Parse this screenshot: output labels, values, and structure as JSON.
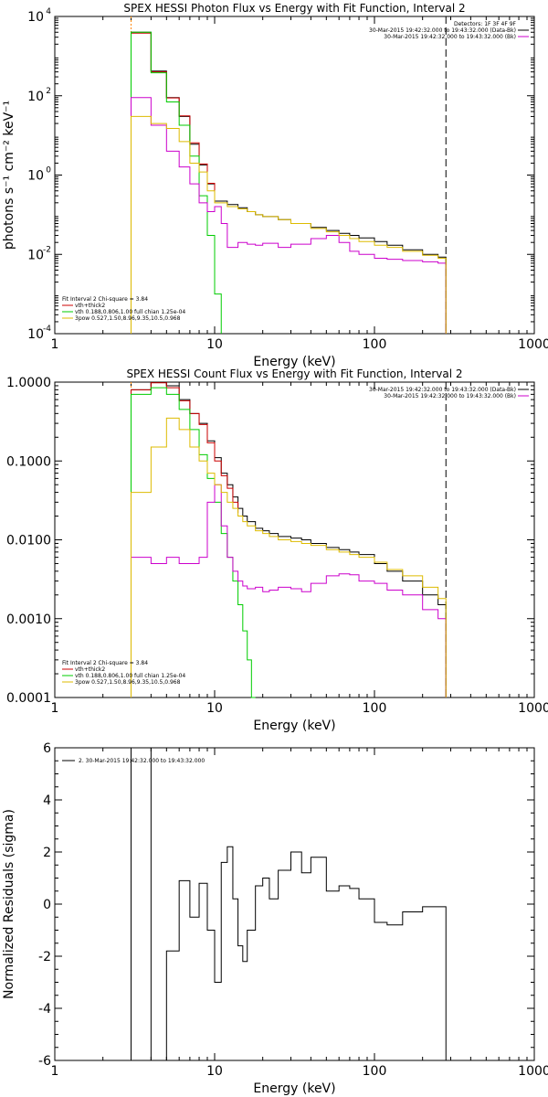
{
  "chart_data": [
    {
      "type": "line",
      "title": "SPEX HESSI Photon Flux vs Energy with Fit Function, Interval 2",
      "xlabel": "Energy (keV)",
      "ylabel": "photons s⁻¹ cm⁻² keV⁻¹",
      "xscale": "log",
      "yscale": "log",
      "xlim": [
        1,
        1000
      ],
      "ylim": [
        0.0001,
        10000
      ],
      "xticks": [
        1,
        10,
        100,
        1000
      ],
      "xtick_labels": [
        "1",
        "10",
        "100",
        "1000"
      ],
      "yticks": [
        0.0001,
        0.01,
        1,
        100,
        10000
      ],
      "ytick_labels": [
        [
          "10",
          "-4"
        ],
        [
          "10",
          "-2"
        ],
        [
          "10",
          "0"
        ],
        [
          "10",
          "2"
        ],
        [
          "10",
          "4"
        ]
      ],
      "legend_top": [
        "Detectors: 1F 3F 4F 9F",
        "30-Mar-2015 19:42:32.000 to 19:43:32.000 (Data-Bk)",
        "30-Mar-2015 19:42:32.000 to 19:43:32.000 (Bk)"
      ],
      "legend_bottom": [
        "Fit Interval 2   Chi-square = 3.84",
        "vth+thick2",
        "vth 0.188,0.806,1.00  full chian 1.25e-04",
        "3pow 0.527,1.50,8.96,9.35,10.5,0.968"
      ],
      "vlines": [
        3,
        280
      ],
      "series": [
        {
          "color": "#000000",
          "x": [
            3,
            4,
            5,
            6,
            7,
            8,
            9,
            10,
            12,
            14,
            16,
            18,
            20,
            25,
            30,
            40,
            50,
            60,
            70,
            80,
            100,
            120,
            150,
            200,
            250,
            280
          ],
          "y": [
            4000,
            420,
            90,
            30,
            6,
            1.8,
            0.6,
            0.22,
            0.18,
            0.15,
            0.12,
            0.1,
            0.09,
            0.075,
            0.06,
            0.048,
            0.04,
            0.034,
            0.03,
            0.026,
            0.021,
            0.017,
            0.013,
            0.01,
            0.0085,
            0.0001
          ]
        },
        {
          "color": "#cc0000",
          "x": [
            3,
            4,
            5,
            6,
            7,
            8,
            9,
            10
          ],
          "y": [
            3800,
            400,
            88,
            31,
            6.5,
            1.9,
            0.62,
            0.22
          ]
        },
        {
          "color": "#00cc00",
          "x": [
            3,
            4,
            5,
            6,
            7,
            8,
            9,
            10,
            11
          ],
          "y": [
            4000,
            380,
            70,
            18,
            3,
            0.3,
            0.03,
            0.001,
            0.0001
          ]
        },
        {
          "color": "#cc00cc",
          "x": [
            3,
            4,
            5,
            6,
            7,
            8,
            9,
            10,
            11,
            12,
            14,
            16,
            18,
            20,
            25,
            30,
            40,
            50,
            60,
            70,
            80,
            100,
            120,
            150,
            200,
            250,
            280
          ],
          "y": [
            90,
            18,
            4,
            1.6,
            0.6,
            0.2,
            0.12,
            0.16,
            0.06,
            0.015,
            0.02,
            0.018,
            0.017,
            0.019,
            0.015,
            0.018,
            0.025,
            0.03,
            0.02,
            0.012,
            0.01,
            0.008,
            0.0075,
            0.007,
            0.0065,
            0.006,
            0.0001
          ]
        },
        {
          "color": "#ddbb00",
          "x": [
            3,
            4,
            5,
            6,
            7,
            8,
            9,
            10,
            12,
            14,
            16,
            18,
            20,
            25,
            30,
            40,
            50,
            60,
            70,
            80,
            100,
            120,
            150,
            200,
            250,
            280
          ],
          "y": [
            30,
            20,
            15,
            7,
            2,
            1.2,
            0.4,
            0.2,
            0.16,
            0.14,
            0.12,
            0.1,
            0.09,
            0.075,
            0.06,
            0.045,
            0.037,
            0.03,
            0.025,
            0.021,
            0.017,
            0.015,
            0.012,
            0.0095,
            0.008,
            0.0001
          ]
        }
      ]
    },
    {
      "type": "line",
      "title": "SPEX HESSI Count Flux vs Energy with Fit Function, Interval 2",
      "xlabel": "Energy (keV)",
      "ylabel": "",
      "xscale": "log",
      "yscale": "log",
      "xlim": [
        1,
        1000
      ],
      "ylim": [
        0.0001,
        1
      ],
      "xticks": [
        1,
        10,
        100,
        1000
      ],
      "xtick_labels": [
        "1",
        "10",
        "100",
        "1000"
      ],
      "yticks": [
        0.0001,
        0.001,
        0.01,
        0.1,
        1
      ],
      "ytick_labels": [
        [
          "0.0001"
        ],
        [
          "0.0010"
        ],
        [
          "0.0100"
        ],
        [
          "0.1000"
        ],
        [
          "1.0000"
        ]
      ],
      "legend_top": [
        "30-Mar-2015 19:42:32.000 to 19:43:32.000 (Data-Bk)",
        "30-Mar-2015 19:42:32.000 to 19:43:32.000 (Bk)"
      ],
      "legend_bottom": [
        "Fit Interval 2   Chi-square = 3.84",
        "vth+thick2",
        "vth 0.188,0.806,1.00  full chian 1.25e-04",
        "3pow 0.527,1.50,8.96,9.35,10.5,0.968"
      ],
      "vlines": [
        3,
        280
      ],
      "series": [
        {
          "color": "#000000",
          "x": [
            3,
            4,
            5,
            6,
            7,
            8,
            9,
            10,
            11,
            12,
            13,
            14,
            15,
            16,
            18,
            20,
            22,
            25,
            30,
            35,
            40,
            50,
            60,
            70,
            80,
            100,
            120,
            150,
            200,
            250,
            280
          ],
          "y": [
            0.8,
            1.0,
            0.9,
            0.6,
            0.4,
            0.3,
            0.18,
            0.11,
            0.07,
            0.05,
            0.035,
            0.025,
            0.02,
            0.017,
            0.014,
            0.013,
            0.012,
            0.011,
            0.0105,
            0.01,
            0.009,
            0.008,
            0.0075,
            0.007,
            0.0065,
            0.005,
            0.004,
            0.003,
            0.002,
            0.0015,
            0.0001
          ]
        },
        {
          "color": "#cc0000",
          "x": [
            3,
            4,
            5,
            6,
            7,
            8,
            9,
            10,
            11,
            12,
            13,
            14
          ],
          "y": [
            0.8,
            0.98,
            0.85,
            0.58,
            0.4,
            0.29,
            0.17,
            0.1,
            0.065,
            0.045,
            0.03,
            0.022
          ]
        },
        {
          "color": "#00cc00",
          "x": [
            3,
            4,
            5,
            6,
            7,
            8,
            9,
            10,
            11,
            12,
            13,
            14,
            15,
            16,
            17,
            18
          ],
          "y": [
            0.7,
            0.85,
            0.7,
            0.45,
            0.25,
            0.12,
            0.06,
            0.03,
            0.012,
            0.006,
            0.003,
            0.0015,
            0.0007,
            0.0003,
            0.0001,
            0.0001
          ]
        },
        {
          "color": "#cc00cc",
          "x": [
            3,
            4,
            5,
            6,
            7,
            8,
            9,
            10,
            11,
            12,
            13,
            14,
            15,
            16,
            18,
            20,
            22,
            25,
            30,
            35,
            40,
            50,
            60,
            70,
            80,
            100,
            120,
            150,
            200,
            250,
            280
          ],
          "y": [
            0.006,
            0.005,
            0.006,
            0.005,
            0.005,
            0.006,
            0.03,
            0.05,
            0.015,
            0.006,
            0.004,
            0.003,
            0.0026,
            0.0024,
            0.0025,
            0.0022,
            0.0023,
            0.0025,
            0.0024,
            0.0022,
            0.0028,
            0.0035,
            0.0037,
            0.0036,
            0.003,
            0.0028,
            0.0023,
            0.002,
            0.0013,
            0.001,
            0.0001
          ]
        },
        {
          "color": "#ddbb00",
          "x": [
            3,
            4,
            5,
            6,
            7,
            8,
            9,
            10,
            11,
            12,
            13,
            14,
            15,
            16,
            18,
            20,
            22,
            25,
            30,
            35,
            40,
            50,
            60,
            70,
            80,
            100,
            120,
            150,
            200,
            250,
            280
          ],
          "y": [
            0.04,
            0.15,
            0.35,
            0.25,
            0.15,
            0.1,
            0.07,
            0.05,
            0.04,
            0.03,
            0.025,
            0.02,
            0.017,
            0.015,
            0.013,
            0.012,
            0.011,
            0.01,
            0.0095,
            0.009,
            0.0085,
            0.0075,
            0.007,
            0.0065,
            0.006,
            0.0052,
            0.0042,
            0.0035,
            0.0025,
            0.0018,
            0.0001
          ]
        }
      ]
    },
    {
      "type": "line",
      "title": "",
      "xlabel": "Energy (keV)",
      "ylabel": "Normalized Residuals (sigma)",
      "xscale": "log",
      "yscale": "linear",
      "xlim": [
        1,
        1000
      ],
      "ylim": [
        -6,
        6
      ],
      "xticks": [
        1,
        10,
        100,
        1000
      ],
      "xtick_labels": [
        "1",
        "10",
        "100",
        "1000"
      ],
      "yticks": [
        -6,
        -4,
        -2,
        0,
        2,
        4,
        6
      ],
      "ytick_labels": [
        [
          "-6"
        ],
        [
          "-4"
        ],
        [
          "-2"
        ],
        [
          "0"
        ],
        [
          "2"
        ],
        [
          "4"
        ],
        [
          "6"
        ]
      ],
      "legend_top": [
        "2. 30-Mar-2015 19:42:32.000 to 19:43:32.000"
      ],
      "legend_bottom": [],
      "vlines": [],
      "series": [
        {
          "color": "#000000",
          "x": [
            3,
            4,
            5,
            6,
            7,
            8,
            9,
            10,
            11,
            12,
            13,
            14,
            15,
            16,
            18,
            20,
            22,
            25,
            30,
            35,
            40,
            50,
            60,
            70,
            80,
            100,
            120,
            150,
            200,
            250,
            280
          ],
          "y": [
            6,
            -6,
            -1.8,
            0.9,
            -0.5,
            0.8,
            -1,
            -3,
            1.6,
            2.2,
            0.2,
            -1.6,
            -2.2,
            -1,
            0.7,
            1,
            0.2,
            1.3,
            2,
            1.2,
            1.8,
            0.5,
            0.7,
            0.6,
            0.2,
            -0.7,
            -0.8,
            -0.3,
            -0.1,
            -0.1,
            -6
          ]
        }
      ]
    }
  ]
}
